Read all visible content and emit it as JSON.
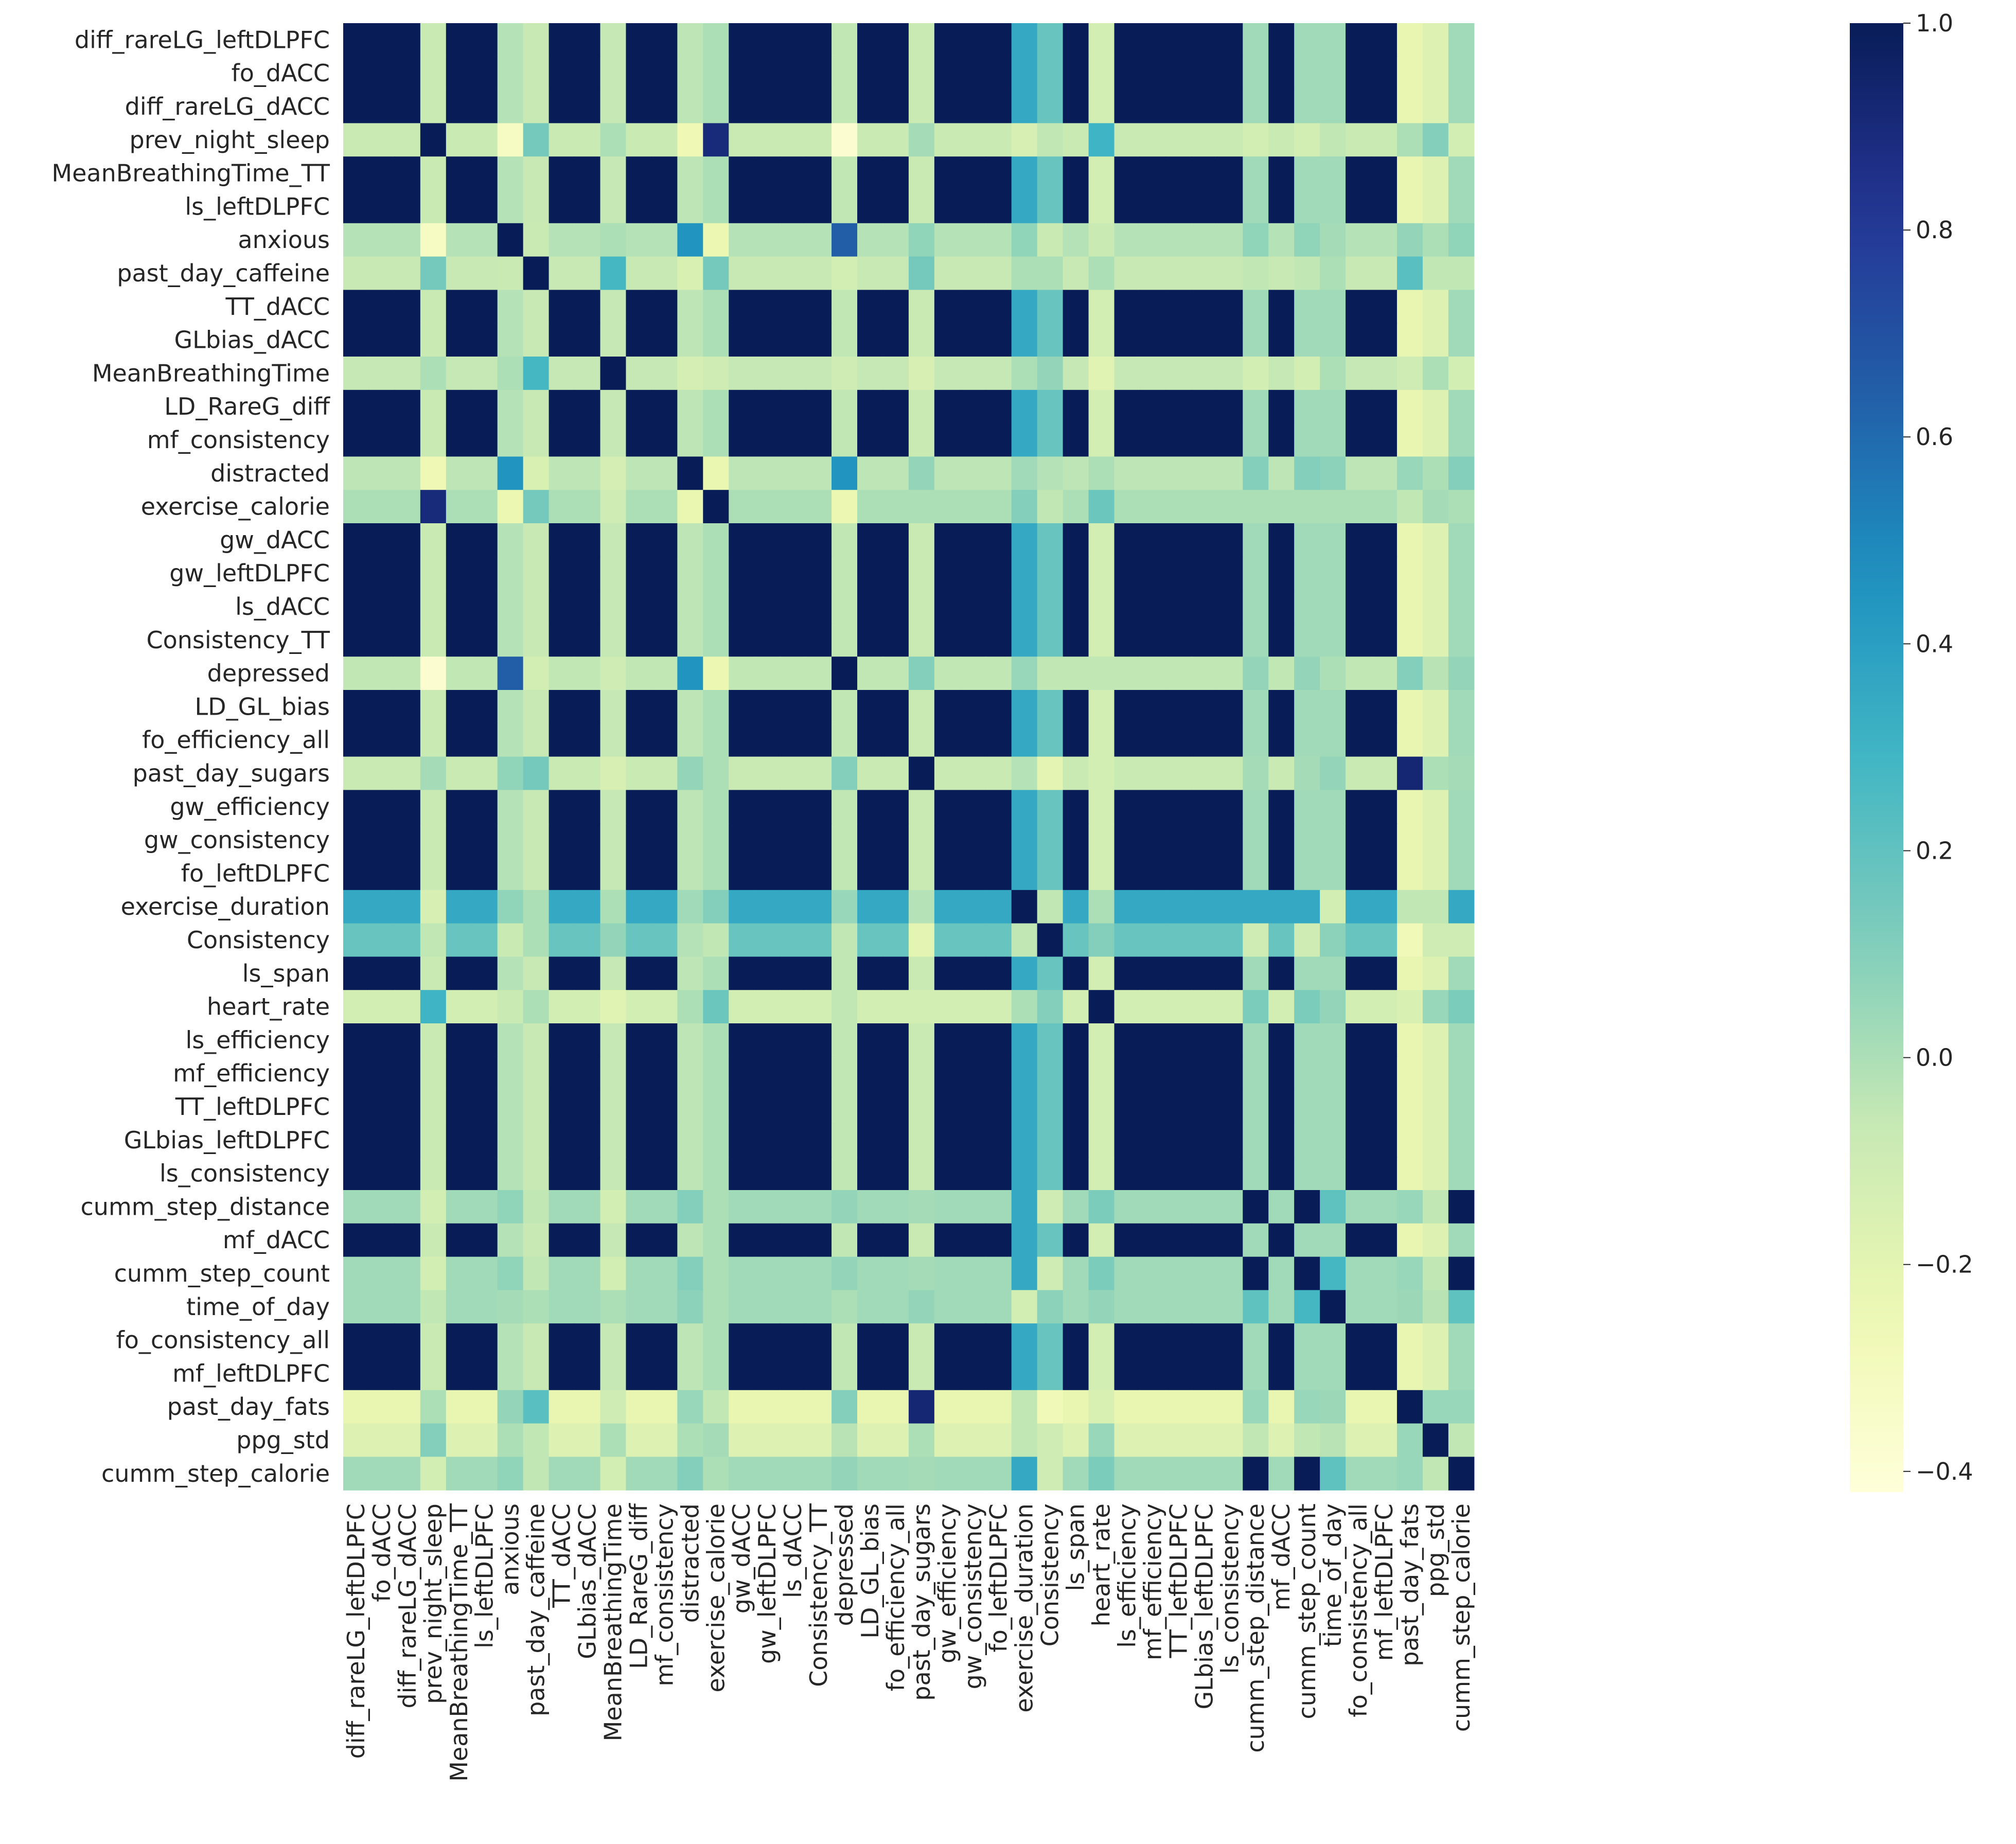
{
  "chart_data": {
    "type": "heatmap",
    "title": "",
    "xlabel": "",
    "ylabel": "",
    "labels": [
      "diff_rareLG_leftDLPFC",
      "fo_dACC",
      "diff_rareLG_dACC",
      "prev_night_sleep",
      "MeanBreathingTime_TT",
      "ls_leftDLPFC",
      "anxious",
      "past_day_caffeine",
      "TT_dACC",
      "GLbias_dACC",
      "MeanBreathingTime",
      "LD_RareG_diff",
      "mf_consistency",
      "distracted",
      "exercise_calorie",
      "gw_dACC",
      "gw_leftDLPFC",
      "ls_dACC",
      "Consistency_TT",
      "depressed",
      "LD_GL_bias",
      "fo_efficiency_all",
      "past_day_sugars",
      "gw_efficiency",
      "gw_consistency",
      "fo_leftDLPFC",
      "exercise_duration",
      "Consistency",
      "ls_span",
      "heart_rate",
      "ls_efficiency",
      "mf_efficiency",
      "TT_leftDLPFC",
      "GLbias_leftDLPFC",
      "ls_consistency",
      "cumm_step_distance",
      "mf_dACC",
      "cumm_step_count",
      "time_of_day",
      "fo_consistency_all",
      "mf_leftDLPFC",
      "past_day_fats",
      "ppg_std",
      "cumm_step_calorie"
    ],
    "color_range": [
      -0.42,
      1.0
    ],
    "colorbar_ticks": [
      "−0.4",
      "−0.2",
      "0.0",
      "0.2",
      "0.4",
      "0.6",
      "0.8",
      "1.0"
    ],
    "colormap": "YlGnBu",
    "groups": {
      "A": "brain features (mutually ≈1.0)",
      "singles": "prev_night_sleep, anxious, past_day_caffeine, MeanBreathingTime, distracted, exercise_calorie, depressed, past_day_sugars, exercise_duration, Consistency, heart_rate, past_day_fats, ppg_std",
      "S": "cumm_step_distance, cumm_step_count, cumm_step_calorie (mutually ≈1.0)"
    },
    "notable_pairs": [
      {
        "a": "prev_night_sleep",
        "b": "exercise_calorie",
        "value": 0.9
      },
      {
        "a": "anxious",
        "b": "depressed",
        "value": 0.65
      },
      {
        "a": "anxious",
        "b": "distracted",
        "value": 0.45
      },
      {
        "a": "distracted",
        "b": "depressed",
        "value": 0.45
      },
      {
        "a": "past_day_sugars",
        "b": "past_day_fats",
        "value": 0.92
      },
      {
        "a": "prev_night_sleep",
        "b": "heart_rate",
        "value": 0.3
      },
      {
        "a": "past_day_caffeine",
        "b": "MeanBreathingTime",
        "value": 0.28
      },
      {
        "a": "exercise_duration",
        "b": "brain features",
        "value": 0.35
      },
      {
        "a": "Consistency",
        "b": "brain features",
        "value": 0.18
      },
      {
        "a": "cumm_step_count",
        "b": "time_of_day",
        "value": 0.28
      }
    ]
  }
}
